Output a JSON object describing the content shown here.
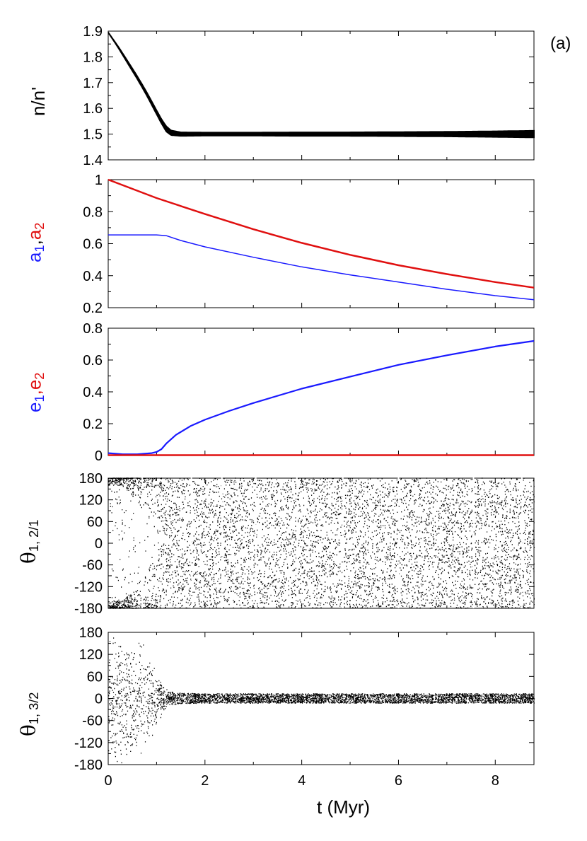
{
  "panel_label": "(a)",
  "colors": {
    "black": "#000000",
    "blue": "#1a1aff",
    "red": "#e01010"
  },
  "chart_data": [
    {
      "type": "line",
      "ylabel": "n/n'",
      "xlim": [
        0,
        8.8
      ],
      "ylim": [
        1.4,
        1.9
      ],
      "yticks": [
        "1.4",
        "1.5",
        "1.6",
        "1.7",
        "1.8",
        "1.9"
      ],
      "series": [
        {
          "color": "#000000",
          "x": [
            0,
            0.2,
            0.4,
            0.6,
            0.8,
            1.0,
            1.1,
            1.2,
            1.3,
            1.5,
            2,
            3,
            4,
            5,
            6,
            7,
            8,
            8.8
          ],
          "y": [
            1.895,
            1.84,
            1.78,
            1.72,
            1.655,
            1.585,
            1.55,
            1.52,
            1.505,
            1.5,
            1.5,
            1.5,
            1.5,
            1.5,
            1.5,
            1.5,
            1.5,
            1.5
          ],
          "spread": [
            0,
            0.002,
            0.004,
            0.005,
            0.006,
            0.007,
            0.008,
            0.01,
            0.009,
            0.007,
            0.006,
            0.006,
            0.007,
            0.007,
            0.008,
            0.009,
            0.011,
            0.013
          ]
        }
      ]
    },
    {
      "type": "line",
      "ylabel_parts": [
        "a",
        "1",
        ",",
        "a",
        "2"
      ],
      "xlim": [
        0,
        8.8
      ],
      "ylim": [
        0.2,
        1.0
      ],
      "yticks": [
        "0.2",
        "0.4",
        "0.6",
        "0.8",
        "1"
      ],
      "series": [
        {
          "color": "#e01010",
          "x": [
            0,
            1,
            2,
            3,
            4,
            5,
            6,
            7,
            8,
            8.8
          ],
          "y": [
            1.0,
            0.885,
            0.785,
            0.69,
            0.605,
            0.53,
            0.465,
            0.41,
            0.36,
            0.325
          ]
        },
        {
          "color": "#1a1aff",
          "x": [
            0,
            0.5,
            1.0,
            1.2,
            1.5,
            2,
            3,
            4,
            5,
            6,
            7,
            8,
            8.8
          ],
          "y": [
            0.655,
            0.655,
            0.655,
            0.65,
            0.62,
            0.58,
            0.515,
            0.455,
            0.405,
            0.36,
            0.315,
            0.275,
            0.25
          ]
        }
      ]
    },
    {
      "type": "line",
      "ylabel_parts": [
        "e",
        "1",
        ",",
        "e",
        "2"
      ],
      "xlim": [
        0,
        8.8
      ],
      "ylim": [
        0,
        0.8
      ],
      "yticks": [
        "0",
        "0.2",
        "0.4",
        "0.6",
        "0.8"
      ],
      "series": [
        {
          "color": "#1a1aff",
          "x": [
            0,
            0.3,
            0.6,
            0.9,
            1.0,
            1.1,
            1.2,
            1.4,
            1.7,
            2,
            2.5,
            3,
            4,
            5,
            6,
            7,
            8,
            8.8
          ],
          "y": [
            0.015,
            0.008,
            0.008,
            0.015,
            0.022,
            0.04,
            0.075,
            0.13,
            0.185,
            0.225,
            0.28,
            0.33,
            0.42,
            0.495,
            0.57,
            0.63,
            0.685,
            0.72
          ]
        },
        {
          "color": "#e01010",
          "x": [
            0,
            8.8
          ],
          "y": [
            0.002,
            0.002
          ]
        }
      ]
    },
    {
      "type": "scatter",
      "ylabel_parts": [
        "θ",
        "1, 2/1"
      ],
      "xlim": [
        0,
        8.8
      ],
      "ylim": [
        -180,
        180
      ],
      "yticks": [
        "-180",
        "-120",
        "-60",
        "0",
        "60",
        "120",
        "180"
      ],
      "description_density": "librating near ±180 until ~1 Myr, then circulating uniformly",
      "gaps_x": [
        0.7,
        1.72,
        2.35,
        3.05,
        3.9,
        4.85,
        6.0,
        7.55,
        8.55
      ]
    },
    {
      "type": "scatter",
      "ylabel_parts": [
        "θ",
        "1, 3/2"
      ],
      "xlim": [
        0,
        8.8
      ],
      "ylim": [
        -180,
        180
      ],
      "yticks": [
        "-180",
        "-120",
        "60",
        "0",
        "-60",
        "120",
        "180"
      ],
      "yticks_ordered": [
        "-180",
        "-120",
        "-60",
        "0",
        "60",
        "120",
        "180"
      ],
      "envelope": {
        "x": [
          0,
          0.3,
          0.6,
          0.8,
          0.95,
          1.05,
          1.15,
          1.3,
          1.5,
          2,
          8.8
        ],
        "half_width": [
          180,
          180,
          180,
          140,
          95,
          60,
          35,
          18,
          14,
          13,
          13
        ]
      }
    }
  ],
  "xaxis": {
    "label": "t (Myr)",
    "ticks": [
      "0",
      "2",
      "4",
      "6",
      "8"
    ]
  }
}
